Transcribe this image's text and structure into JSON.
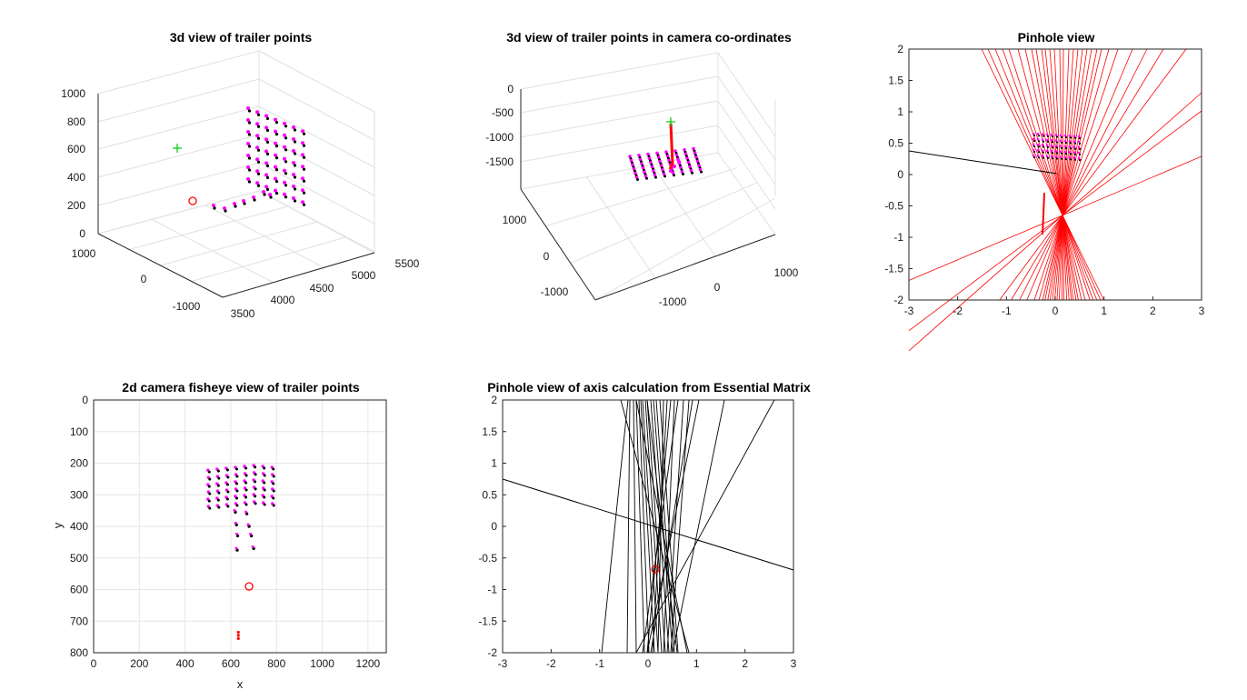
{
  "colors": {
    "axis": "#262626",
    "grid": "#e6e6e6",
    "box_grid": "#e0e0e0",
    "point_black": "#000000",
    "point_magenta": "#ff00ff",
    "marker_red": "#ff0000",
    "marker_green": "#00cc00",
    "line_red": "#ff0000",
    "line_black": "#000000"
  },
  "chart_data": [
    {
      "id": "plot1",
      "type": "scatter3d",
      "title": "3d view of trailer points",
      "z_ticks": [
        "0",
        "200",
        "400",
        "600",
        "800",
        "1000"
      ],
      "y_ticks": [
        "1000",
        "0",
        "-1000"
      ],
      "x_ticks": [
        "3500",
        "4000",
        "4500",
        "5000",
        "5500"
      ],
      "zlim": [
        0,
        1000
      ],
      "grid": true,
      "view": "3d",
      "marker_red": "circle",
      "marker_green": "plus"
    },
    {
      "id": "plot2",
      "type": "scatter3d",
      "title": "3d view of trailer points in camera co-ordinates",
      "z_ticks": [
        "0",
        "-500",
        "-1000",
        "-1500"
      ],
      "y_ticks": [
        "1000",
        "0",
        "-1000"
      ],
      "x_ticks": [
        "-1000",
        "0",
        "1000"
      ],
      "grid": true,
      "view": "3d"
    },
    {
      "id": "plot3",
      "type": "line",
      "title": "Pinhole view",
      "xlim": [
        -3,
        3
      ],
      "ylim": [
        -2,
        2
      ],
      "x_ticks": [
        "-3",
        "-2",
        "-1",
        "0",
        "1",
        "2",
        "3"
      ],
      "y_ticks": [
        "2",
        "1.5",
        "1",
        "0.5",
        "0",
        "-0.5",
        "-1",
        "-1.5",
        "-2"
      ],
      "convergence_point": {
        "x": 0.15,
        "y": -0.65
      },
      "grid": false
    },
    {
      "id": "plot4",
      "type": "scatter",
      "title": "2d camera fisheye view of trailer points",
      "xlabel": "x",
      "ylabel": "y",
      "xlim": [
        0,
        1280
      ],
      "ylim": [
        800,
        0
      ],
      "x_ticks": [
        "0",
        "200",
        "400",
        "600",
        "800",
        "1000",
        "1200"
      ],
      "y_ticks": [
        "0",
        "100",
        "200",
        "300",
        "400",
        "500",
        "600",
        "700",
        "800"
      ],
      "red_circle": {
        "x": 680,
        "y": 590
      },
      "red_marks": [
        {
          "x": 633,
          "y": 735
        },
        {
          "x": 633,
          "y": 745
        },
        {
          "x": 633,
          "y": 755
        }
      ],
      "grid": true
    },
    {
      "id": "plot5",
      "type": "line",
      "title": "Pinhole view of axis calculation from Essential Matrix",
      "xlim": [
        -3,
        3
      ],
      "ylim": [
        -2,
        2
      ],
      "x_ticks": [
        "-3",
        "-2",
        "-1",
        "0",
        "1",
        "2",
        "3"
      ],
      "y_ticks": [
        "2",
        "1.5",
        "1",
        "0.5",
        "0",
        "-0.5",
        "-1",
        "-1.5",
        "-2"
      ],
      "red_circle": {
        "x": 0.15,
        "y": -0.68
      },
      "grid": false
    }
  ]
}
